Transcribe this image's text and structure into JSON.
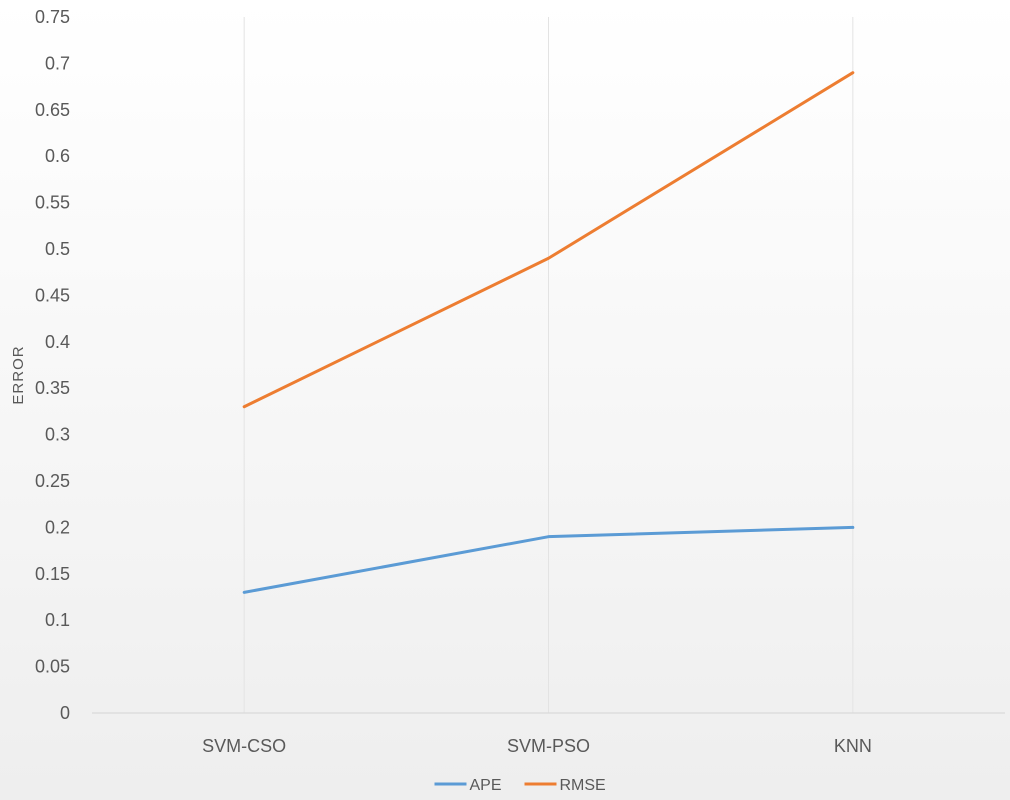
{
  "chart_data": {
    "type": "line",
    "title": "",
    "xlabel": "",
    "ylabel": "ERROR",
    "categories": [
      "SVM-CSO",
      "SVM-PSO",
      "KNN"
    ],
    "series": [
      {
        "name": "APE",
        "values": [
          0.13,
          0.19,
          0.2
        ],
        "color": "#5b9bd5"
      },
      {
        "name": "RMSE",
        "values": [
          0.33,
          0.49,
          0.69
        ],
        "color": "#ed7d31"
      }
    ],
    "ylim": [
      0,
      0.75
    ],
    "yticks": [
      "0",
      "0.05",
      "0.1",
      "0.15",
      "0.2",
      "0.25",
      "0.3",
      "0.35",
      "0.4",
      "0.45",
      "0.5",
      "0.55",
      "0.6",
      "0.65",
      "0.7",
      "0.75"
    ],
    "grid": "vertical",
    "legend_position": "bottom",
    "axis_color": "#d9d9d9",
    "grid_color": "#e3e3e3"
  }
}
